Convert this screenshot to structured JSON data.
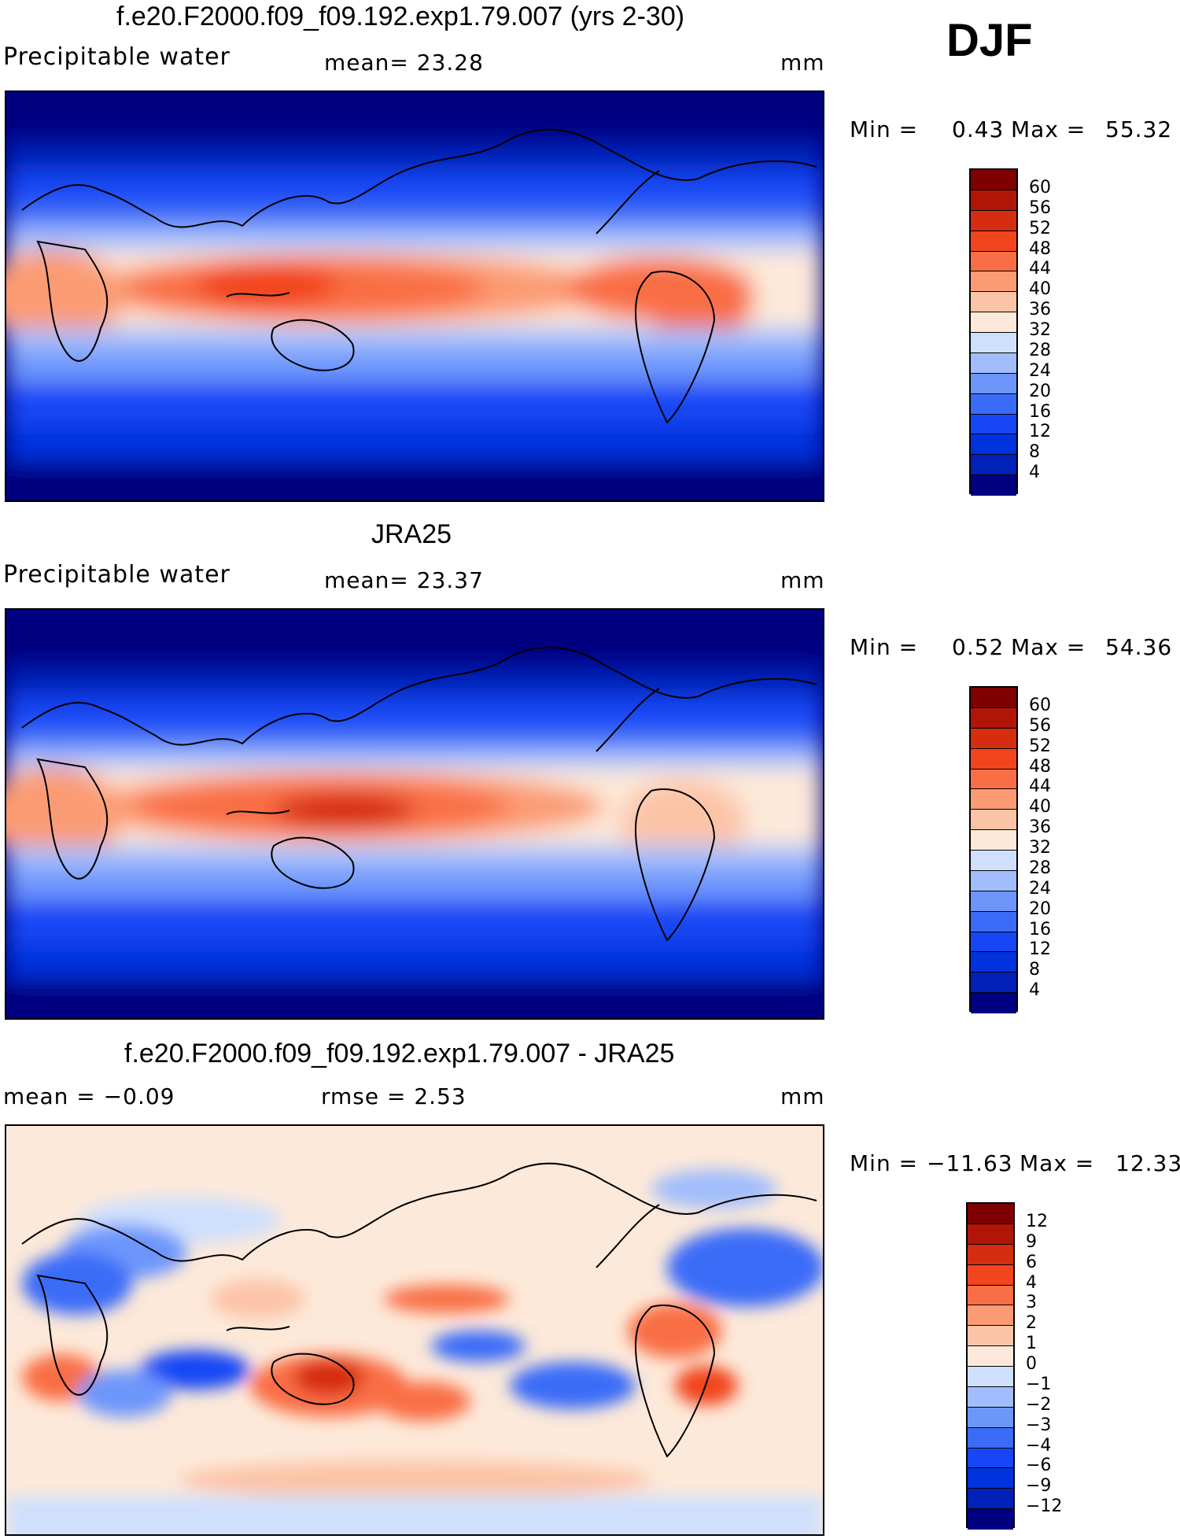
{
  "season": "DJF",
  "units": "mm",
  "colors": {
    "abs_scale": [
      "#000080",
      "#0020b8",
      "#0033dd",
      "#1646f5",
      "#3a6cf8",
      "#6d96fb",
      "#a2bdfc",
      "#cfe0fd",
      "#fde9d9",
      "#fcc4a7",
      "#fb9b73",
      "#f96e45",
      "#f2451e",
      "#d62c10",
      "#b11508",
      "#7f0000"
    ],
    "diff_scale": [
      "#000080",
      "#0020b8",
      "#0033dd",
      "#1646f5",
      "#3a6cf8",
      "#6d96fb",
      "#a2bdfc",
      "#cfe0fd",
      "#fde9d9",
      "#fcc4a7",
      "#fb9b73",
      "#f96e45",
      "#f2451e",
      "#d62c10",
      "#b11508",
      "#7f0000"
    ]
  },
  "panels": [
    {
      "title": "f.e20.F2000.f09_f09.192.exp1.79.007 (yrs 2-30)",
      "variable": "Precipitable water",
      "stat1": "mean=   23.28",
      "stat2": "",
      "units": "mm",
      "minmax": {
        "min_label": "Min =",
        "min": "0.43",
        "max_label": "Max =",
        "max": "55.32"
      },
      "colorbar_labels": [
        "60",
        "56",
        "52",
        "48",
        "44",
        "40",
        "36",
        "32",
        "28",
        "24",
        "20",
        "16",
        "12",
        "8",
        "4"
      ]
    },
    {
      "title": "JRA25",
      "variable": "Precipitable water",
      "stat1": "mean=   23.37",
      "stat2": "",
      "units": "mm",
      "minmax": {
        "min_label": "Min =",
        "min": "0.52",
        "max_label": "Max =",
        "max": "54.36"
      },
      "colorbar_labels": [
        "60",
        "56",
        "52",
        "48",
        "44",
        "40",
        "36",
        "32",
        "28",
        "24",
        "20",
        "16",
        "12",
        "8",
        "4"
      ]
    },
    {
      "title": "f.e20.F2000.f09_f09.192.exp1.79.007 - JRA25",
      "variable": "mean =   −0.09",
      "stat1": "rmse =    2.53",
      "stat2": "",
      "units": "mm",
      "minmax": {
        "min_label": "Min =",
        "min": "−11.63",
        "max_label": "Max =",
        "max": "12.33"
      },
      "colorbar_labels": [
        "12",
        "9",
        "6",
        "4",
        "3",
        "2",
        "1",
        "0",
        "−1",
        "−2",
        "−3",
        "−4",
        "−6",
        "−9",
        "−12"
      ]
    }
  ]
}
